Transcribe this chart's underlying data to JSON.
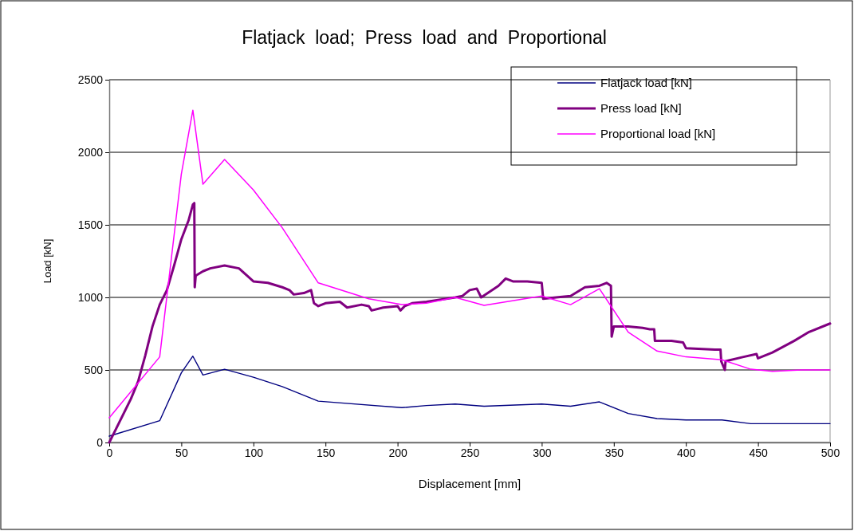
{
  "chart_data": {
    "type": "line",
    "title": "Flatjack  load;  Press  load  and  Proportional",
    "xlabel": "Displacement [mm]",
    "ylabel": "Load [kN]",
    "xlim": [
      0,
      500
    ],
    "xticks": [
      0,
      50,
      100,
      150,
      200,
      250,
      300,
      350,
      400,
      450,
      500
    ],
    "ylim": [
      0,
      2500
    ],
    "yticks": [
      0,
      500,
      1000,
      1500,
      2000,
      2500
    ],
    "grid": "y",
    "legend": "top right",
    "marker": "none",
    "series": [
      {
        "name": "Flatjack load [kN]",
        "color": "#000080",
        "x": [
          0,
          35,
          50,
          58,
          65,
          80,
          100,
          120,
          145,
          203,
          220,
          240,
          260,
          300,
          320,
          340,
          360,
          380,
          400,
          425,
          445,
          500
        ],
        "values": [
          44,
          150,
          480,
          595,
          465,
          505,
          450,
          385,
          285,
          240,
          255,
          265,
          250,
          265,
          250,
          280,
          200,
          165,
          155,
          155,
          130,
          130
        ]
      },
      {
        "name": "Press load [kN]",
        "color": "#800080",
        "x": [
          0,
          5,
          10,
          15,
          20,
          25,
          30,
          35,
          40,
          45,
          50,
          55,
          58,
          59,
          59.3,
          60,
          65,
          70,
          80,
          90,
          100,
          110,
          120,
          125,
          128,
          135,
          140,
          142,
          145,
          150,
          160,
          165,
          175,
          180,
          182,
          190,
          200,
          202,
          205,
          210,
          220,
          230,
          240,
          245,
          250,
          255,
          258,
          270,
          275,
          280,
          290,
          300,
          301,
          310,
          320,
          330,
          340,
          345,
          348,
          348.5,
          350,
          360,
          370,
          375,
          378,
          378.5,
          390,
          398,
          400,
          420,
          424,
          424.5,
          427,
          427.5,
          440,
          449,
          450,
          460,
          475,
          485,
          500
        ],
        "values": [
          0,
          100,
          200,
          300,
          420,
          600,
          800,
          950,
          1050,
          1220,
          1400,
          1530,
          1640,
          1650,
          1070,
          1150,
          1180,
          1200,
          1220,
          1200,
          1110,
          1100,
          1070,
          1050,
          1020,
          1030,
          1050,
          960,
          940,
          960,
          970,
          930,
          950,
          940,
          910,
          930,
          940,
          910,
          940,
          960,
          970,
          985,
          1000,
          1010,
          1050,
          1060,
          1000,
          1080,
          1130,
          1110,
          1110,
          1100,
          990,
          1000,
          1010,
          1070,
          1080,
          1100,
          1080,
          730,
          800,
          800,
          790,
          780,
          780,
          700,
          700,
          690,
          650,
          640,
          640,
          560,
          500,
          560,
          590,
          610,
          580,
          620,
          700,
          760,
          820
        ]
      },
      {
        "name": "Proportional load [kN]",
        "color": "#ff00ff",
        "x": [
          0,
          35,
          50,
          58,
          65,
          80,
          100,
          120,
          145,
          180,
          203,
          220,
          240,
          260,
          300,
          320,
          340,
          360,
          380,
          400,
          425,
          445,
          460,
          480,
          500
        ],
        "values": [
          170,
          590,
          1850,
          2290,
          1780,
          1950,
          1740,
          1480,
          1100,
          990,
          950,
          960,
          1000,
          945,
          1010,
          950,
          1060,
          760,
          630,
          590,
          570,
          505,
          490,
          500,
          500
        ]
      }
    ]
  }
}
